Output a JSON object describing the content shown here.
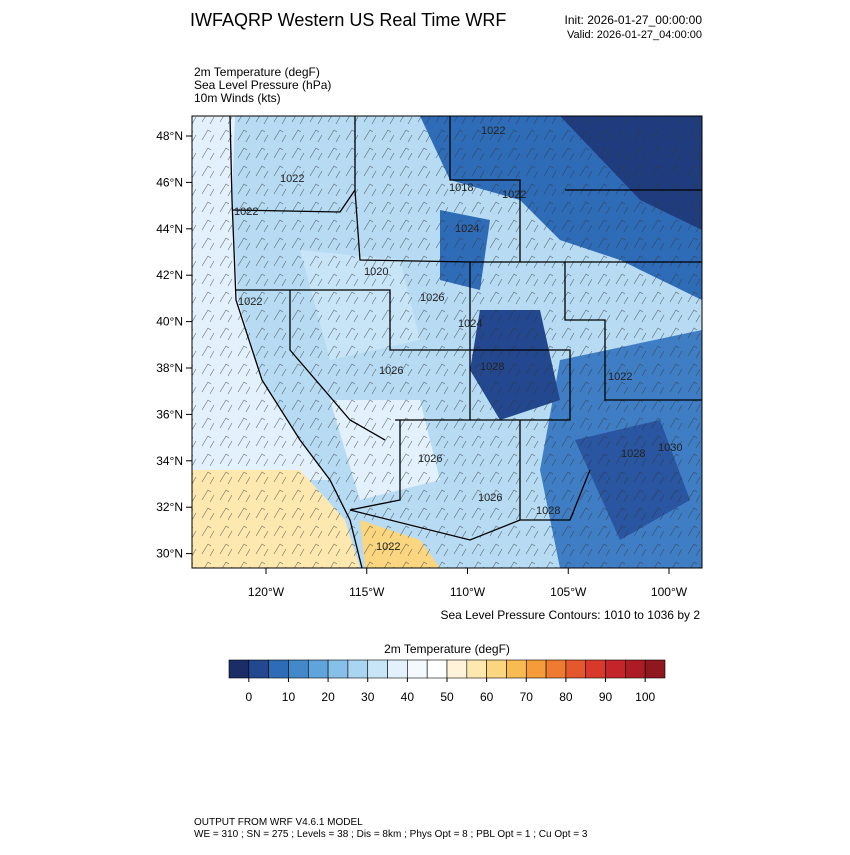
{
  "header": {
    "title": "IWFAQRP Western US Real Time WRF",
    "init": "Init: 2026-01-27_00:00:00",
    "valid": "Valid: 2026-01-27_04:00:00"
  },
  "fields": [
    "2m Temperature   (degF)",
    "Sea Level Pressure   (hPa)",
    "10m Winds   (kts)"
  ],
  "map": {
    "lat_ticks": [
      {
        "value": 48,
        "label": "48°N"
      },
      {
        "value": 46,
        "label": "46°N"
      },
      {
        "value": 44,
        "label": "44°N"
      },
      {
        "value": 42,
        "label": "42°N"
      },
      {
        "value": 40,
        "label": "40°N"
      },
      {
        "value": 38,
        "label": "38°N"
      },
      {
        "value": 36,
        "label": "36°N"
      },
      {
        "value": 34,
        "label": "34°N"
      },
      {
        "value": 32,
        "label": "32°N"
      },
      {
        "value": 30,
        "label": "30°N"
      }
    ],
    "lon_ticks": [
      {
        "value": -120,
        "label": "120°W"
      },
      {
        "value": -115,
        "label": "115°W"
      },
      {
        "value": -110,
        "label": "110°W"
      },
      {
        "value": -105,
        "label": "105°W"
      },
      {
        "value": -100,
        "label": "100°W"
      }
    ],
    "contour_labels": [
      "1022",
      "1022",
      "1022",
      "1018",
      "1022",
      "1024",
      "1020",
      "1022",
      "1026",
      "1024",
      "1026",
      "1028",
      "1022",
      "1026",
      "1028",
      "1030",
      "1026",
      "1028",
      "1022"
    ],
    "contour_note": "Sea Level Pressure Contours: 1010 to 1036 by 2"
  },
  "colorbar": {
    "title": "2m Temperature  (degF)",
    "ticks": [
      0,
      10,
      20,
      30,
      40,
      50,
      60,
      70,
      80,
      90,
      100
    ],
    "colors": [
      "#1a2d66",
      "#23488f",
      "#2f6cb8",
      "#4389ca",
      "#5fa5db",
      "#86c0e8",
      "#a9d5f2",
      "#c8e5f7",
      "#e2f1fb",
      "#f4f9fd",
      "#ffffff",
      "#fff4d9",
      "#fde9b0",
      "#fbd680",
      "#f8bb52",
      "#f59b3a",
      "#ef7b32",
      "#e5572d",
      "#d8392b",
      "#c4242a",
      "#ad1c25",
      "#8f171f"
    ]
  },
  "footer": [
    "OUTPUT FROM WRF V4.6.1 MODEL",
    "WE = 310 ; SN = 275 ; Levels = 38 ; Dis = 8km ; Phys Opt = 8 ; PBL Opt = 1 ; Cu Opt = 3"
  ]
}
